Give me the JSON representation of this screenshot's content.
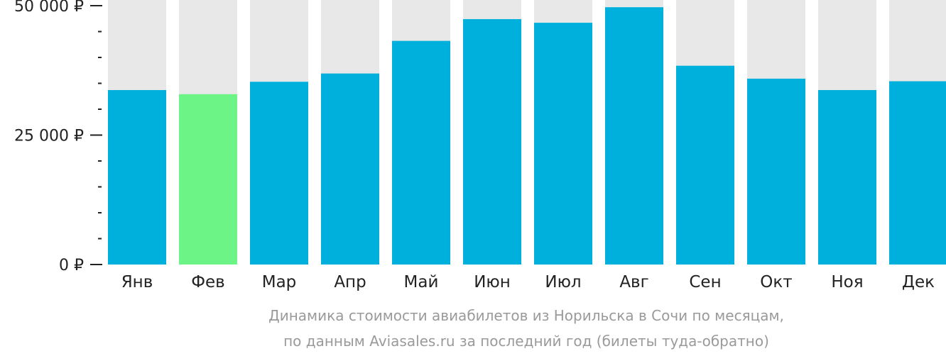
{
  "chart_data": {
    "type": "bar",
    "categories": [
      "Янв",
      "Фев",
      "Мар",
      "Апр",
      "Май",
      "Июн",
      "Июл",
      "Авг",
      "Сен",
      "Окт",
      "Ноя",
      "Дек"
    ],
    "values": [
      33700,
      32900,
      35300,
      36900,
      43200,
      47400,
      46700,
      49700,
      38400,
      35900,
      33700,
      35400
    ],
    "highlight_index": 1,
    "ylim": [
      0,
      50000
    ],
    "yticks": [
      {
        "value": 0,
        "label": "0 ₽"
      },
      {
        "value": 25000,
        "label": "25 000 ₽"
      },
      {
        "value": 50000,
        "label": "50 000 ₽"
      }
    ],
    "minor_tick_step": 5000,
    "caption_line1": "Динамика стоимости авиабилетов из Норильска в Сочи по месяцам,",
    "caption_line2": "по данным Aviasales.ru за последний год (билеты туда-обратно)",
    "colors": {
      "bar": "#00b0dc",
      "highlight": "#6cf486",
      "background_bar": "#e8e8e8",
      "axis": "#222222",
      "caption": "#9a9a9a"
    }
  }
}
